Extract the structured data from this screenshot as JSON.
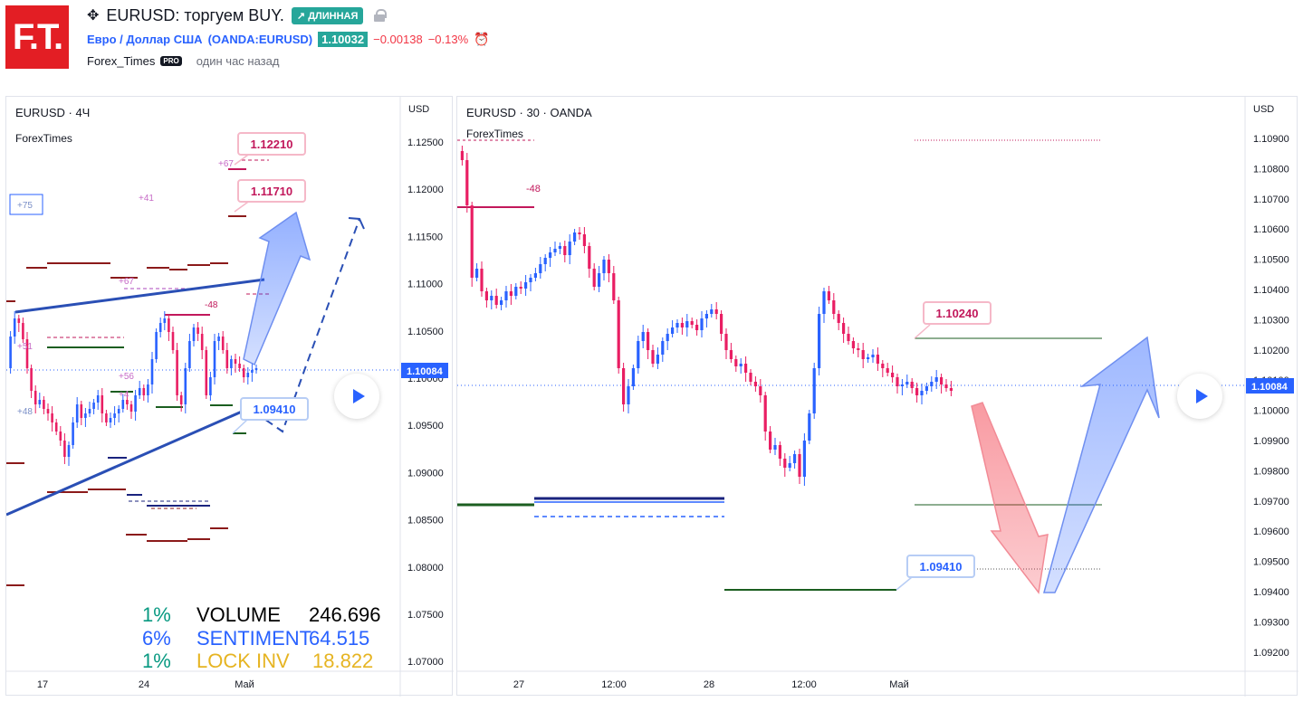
{
  "header": {
    "logo_text": "F.T.",
    "title": "EURUSD: торгуем BUY.",
    "direction_badge": "↗ ДЛИННАЯ",
    "symbol_name": "Евро / Доллар США",
    "symbol_code": "(OANDA:EURUSD)",
    "price": "1.10032",
    "change": "−0.00138",
    "change_pct": "−0.13%",
    "author": "Forex_Times",
    "author_badge": "PRO",
    "published": "один час назад"
  },
  "left_chart": {
    "legend": "EURUSD · 4Ч",
    "watermark": "ForexTimes",
    "currency": "USD",
    "y_ticks": [
      "1.12500",
      "1.12000",
      "1.11500",
      "1.11000",
      "1.10500",
      "1.10000",
      "1.09500",
      "1.09000",
      "1.08500",
      "1.08000",
      "1.07500",
      "1.07000"
    ],
    "x_ticks": [
      "17",
      "24",
      "Май"
    ],
    "last_price": "1.10084",
    "callouts": [
      "1.12210",
      "1.11710",
      "1.09410"
    ],
    "small_labels": [
      "+75",
      "+41",
      "+67",
      "+67",
      "-48",
      "+51",
      "+56",
      "+4",
      "+48"
    ],
    "stats": [
      {
        "pct": "1%",
        "label": "VOLUME",
        "value": "246.696",
        "color": "#089981",
        "label_color": "#000000",
        "value_color": "#000000"
      },
      {
        "pct": "6%",
        "label": "SENTIMENT",
        "value": "64.515",
        "color": "#2962ff",
        "label_color": "#2962ff",
        "value_color": "#2962ff"
      },
      {
        "pct": "1%",
        "label": "LOCK INV",
        "value": "18.822",
        "color": "#089981",
        "label_color": "#e6b422",
        "value_color": "#e6b422"
      }
    ]
  },
  "right_chart": {
    "legend": "EURUSD · 30 · OANDA",
    "watermark": "ForexTimes",
    "currency": "USD",
    "y_ticks": [
      "1.10900",
      "1.10800",
      "1.10700",
      "1.10600",
      "1.10500",
      "1.10400",
      "1.10300",
      "1.10200",
      "1.10100",
      "1.10000",
      "1.09900",
      "1.09800",
      "1.09700",
      "1.09600",
      "1.09500",
      "1.09400",
      "1.09300",
      "1.09200"
    ],
    "x_ticks": [
      "27",
      "12:00",
      "28",
      "12:00",
      "Май"
    ],
    "last_price": "1.10084",
    "callouts": [
      "1.10240",
      "1.09410"
    ],
    "small_labels": [
      "-48"
    ]
  },
  "colors": {
    "up": "#2962ff",
    "down": "#e91e63",
    "accent": "#26a69a",
    "negative": "#f23645"
  }
}
